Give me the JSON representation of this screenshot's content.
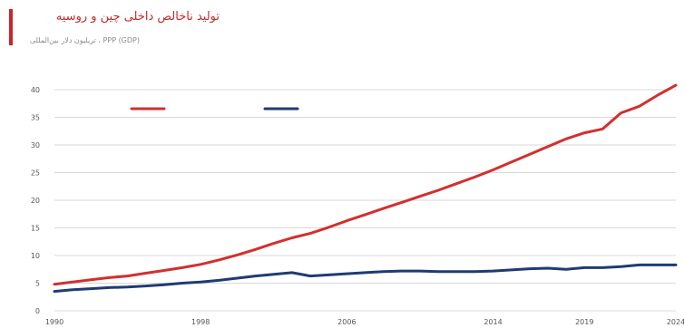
{
  "header": {
    "title": "تولید ناخالص داخلی چین و روسیه",
    "subtitle": "PPP (GDP) ، تریلیون دلار بین‌المللی"
  },
  "colors": {
    "accent": "#c62828",
    "series_china": "#d32f2f",
    "series_russia": "#1f3b73",
    "grid": "#d9d9d9"
  },
  "chart_data": {
    "type": "line",
    "title": "تولید ناخالص داخلی چین و روسیه",
    "subtitle": "PPP (GDP) ، تریلیون دلار بین‌المللی",
    "xlabel": "",
    "ylabel": "",
    "xlim": [
      1990,
      2024
    ],
    "ylim": [
      0,
      40
    ],
    "y_ticks": [
      0,
      5,
      10,
      15,
      20,
      25,
      30,
      35,
      40
    ],
    "x_ticks": [
      1990,
      1998,
      2006,
      2014,
      2019,
      2024
    ],
    "x_tick_labels": [
      "1990",
      "1998",
      "2006",
      "2014",
      "2019",
      "2024"
    ],
    "grid": true,
    "legend_position": "top-left",
    "x": [
      1990,
      1991,
      1992,
      1993,
      1994,
      1995,
      1996,
      1997,
      1998,
      1999,
      2000,
      2001,
      2002,
      2003,
      2004,
      2005,
      2006,
      2007,
      2008,
      2009,
      2010,
      2011,
      2012,
      2013,
      2014,
      2015,
      2016,
      2017,
      2018,
      2019,
      2020,
      2021,
      2022,
      2023,
      2024
    ],
    "series": [
      {
        "color": "#d32f2f",
        "values": [
          4.8,
          5.2,
          5.6,
          6.0,
          6.3,
          6.8,
          7.3,
          7.8,
          8.4,
          9.2,
          10.1,
          11.1,
          12.2,
          13.2,
          14.0,
          15.1,
          16.3,
          17.4,
          18.5,
          19.6,
          20.7,
          21.8,
          23.0,
          24.2,
          25.5,
          26.9,
          28.3,
          29.7,
          31.1,
          32.2,
          32.9,
          35.8,
          37.0,
          39.0,
          40.8
        ]
      },
      {
        "color": "#1f3b73",
        "values": [
          3.5,
          3.8,
          4.0,
          4.2,
          4.3,
          4.5,
          4.7,
          5.0,
          5.2,
          5.5,
          5.9,
          6.3,
          6.6,
          6.9,
          6.3,
          6.5,
          6.7,
          6.9,
          7.1,
          7.2,
          7.2,
          7.1,
          7.1,
          7.1,
          7.2,
          7.4,
          7.6,
          7.7,
          7.5,
          7.8,
          7.8,
          8.0,
          8.3,
          8.3,
          8.3
        ]
      }
    ]
  }
}
